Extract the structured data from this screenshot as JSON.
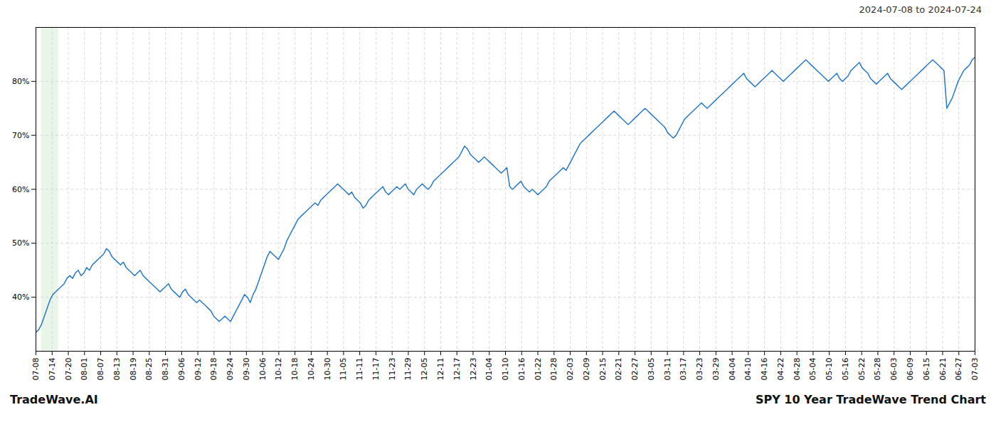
{
  "chart_data": {
    "type": "line",
    "title": "2024-07-08 to 2024-07-24",
    "footer_left": "TradeWave.AI",
    "footer_right": "SPY 10 Year TradeWave Trend Chart",
    "color": "#2878c8",
    "grid": true,
    "shaded_region": {
      "start": 2,
      "end": 8,
      "color": "#c8e6c9"
    },
    "xlim": [
      0,
      333
    ],
    "xticks": [
      {
        "value": 0,
        "label": "07-08"
      },
      {
        "value": 5.7414,
        "label": "07-14"
      },
      {
        "value": 11.4828,
        "label": "07-20"
      },
      {
        "value": 17.2241,
        "label": "08-01"
      },
      {
        "value": 22.9655,
        "label": "08-07"
      },
      {
        "value": 28.7069,
        "label": "08-13"
      },
      {
        "value": 34.4483,
        "label": "08-19"
      },
      {
        "value": 40.1897,
        "label": "08-25"
      },
      {
        "value": 45.931,
        "label": "08-31"
      },
      {
        "value": 51.6724,
        "label": "09-06"
      },
      {
        "value": 57.4138,
        "label": "09-12"
      },
      {
        "value": 63.1552,
        "label": "09-18"
      },
      {
        "value": 68.8966,
        "label": "09-24"
      },
      {
        "value": 74.6379,
        "label": "09-30"
      },
      {
        "value": 80.3793,
        "label": "10-06"
      },
      {
        "value": 86.1207,
        "label": "10-12"
      },
      {
        "value": 91.8621,
        "label": "10-18"
      },
      {
        "value": 97.6034,
        "label": "10-24"
      },
      {
        "value": 103.3448,
        "label": "10-30"
      },
      {
        "value": 109.0862,
        "label": "11-05"
      },
      {
        "value": 114.8276,
        "label": "11-11"
      },
      {
        "value": 120.569,
        "label": "11-17"
      },
      {
        "value": 126.3103,
        "label": "11-23"
      },
      {
        "value": 132.0517,
        "label": "11-29"
      },
      {
        "value": 137.7931,
        "label": "12-05"
      },
      {
        "value": 143.5345,
        "label": "12-11"
      },
      {
        "value": 149.2759,
        "label": "12-17"
      },
      {
        "value": 155.0172,
        "label": "12-23"
      },
      {
        "value": 160.7586,
        "label": "01-04"
      },
      {
        "value": 166.5,
        "label": "01-10"
      },
      {
        "value": 172.2414,
        "label": "01-16"
      },
      {
        "value": 177.9828,
        "label": "01-22"
      },
      {
        "value": 183.7241,
        "label": "01-28"
      },
      {
        "value": 189.4655,
        "label": "02-03"
      },
      {
        "value": 195.2069,
        "label": "02-09"
      },
      {
        "value": 200.9483,
        "label": "02-15"
      },
      {
        "value": 206.6897,
        "label": "02-21"
      },
      {
        "value": 212.431,
        "label": "02-27"
      },
      {
        "value": 218.1724,
        "label": "03-05"
      },
      {
        "value": 223.9138,
        "label": "03-11"
      },
      {
        "value": 229.6552,
        "label": "03-17"
      },
      {
        "value": 235.3966,
        "label": "03-23"
      },
      {
        "value": 241.1379,
        "label": "03-29"
      },
      {
        "value": 246.8793,
        "label": "04-04"
      },
      {
        "value": 252.6207,
        "label": "04-10"
      },
      {
        "value": 258.3621,
        "label": "04-16"
      },
      {
        "value": 264.1034,
        "label": "04-22"
      },
      {
        "value": 269.8448,
        "label": "04-28"
      },
      {
        "value": 275.5862,
        "label": "05-04"
      },
      {
        "value": 281.3276,
        "label": "05-10"
      },
      {
        "value": 287.069,
        "label": "05-16"
      },
      {
        "value": 292.8103,
        "label": "05-22"
      },
      {
        "value": 298.5517,
        "label": "05-28"
      },
      {
        "value": 304.2931,
        "label": "06-03"
      },
      {
        "value": 310.0345,
        "label": "06-09"
      },
      {
        "value": 315.7759,
        "label": "06-15"
      },
      {
        "value": 321.5172,
        "label": "06-21"
      },
      {
        "value": 327.2586,
        "label": "06-27"
      },
      {
        "value": 333,
        "label": "07-03"
      }
    ],
    "ylim": [
      30,
      90
    ],
    "yticks": [
      {
        "value": 40,
        "label": "40%"
      },
      {
        "value": 50,
        "label": "50%"
      },
      {
        "value": 60,
        "label": "60%"
      },
      {
        "value": 70,
        "label": "70%"
      },
      {
        "value": 80,
        "label": "80%"
      }
    ],
    "values": [
      33.5,
      34.0,
      35.0,
      36.5,
      38.0,
      39.5,
      40.5,
      41.0,
      41.5,
      42.0,
      42.5,
      43.5,
      44.0,
      43.5,
      44.5,
      45.0,
      44.0,
      44.5,
      45.5,
      45.0,
      46.0,
      46.5,
      47.0,
      47.5,
      48.0,
      49.0,
      48.5,
      47.5,
      47.0,
      46.5,
      46.0,
      46.5,
      45.5,
      45.0,
      44.5,
      44.0,
      44.5,
      45.0,
      44.0,
      43.5,
      43.0,
      42.5,
      42.0,
      41.5,
      41.0,
      41.5,
      42.0,
      42.5,
      41.5,
      41.0,
      40.5,
      40.0,
      41.0,
      41.5,
      40.5,
      40.0,
      39.5,
      39.0,
      39.5,
      39.0,
      38.5,
      38.0,
      37.5,
      36.5,
      36.0,
      35.5,
      36.0,
      36.5,
      36.0,
      35.5,
      36.5,
      37.5,
      38.5,
      39.5,
      40.5,
      40.0,
      39.0,
      40.5,
      41.5,
      43.0,
      44.5,
      46.0,
      47.5,
      48.5,
      48.0,
      47.5,
      47.0,
      48.0,
      49.0,
      50.5,
      51.5,
      52.5,
      53.5,
      54.5,
      55.0,
      55.5,
      56.0,
      56.5,
      57.0,
      57.5,
      57.0,
      58.0,
      58.5,
      59.0,
      59.5,
      60.0,
      60.5,
      61.0,
      60.5,
      60.0,
      59.5,
      59.0,
      59.5,
      58.5,
      58.0,
      57.5,
      56.5,
      57.0,
      58.0,
      58.5,
      59.0,
      59.5,
      60.0,
      60.5,
      59.5,
      59.0,
      59.5,
      60.0,
      60.5,
      60.0,
      60.5,
      61.0,
      60.0,
      59.5,
      59.0,
      60.0,
      60.5,
      61.0,
      60.5,
      60.0,
      60.5,
      61.5,
      62.0,
      62.5,
      63.0,
      63.5,
      64.0,
      64.5,
      65.0,
      65.5,
      66.0,
      67.0,
      68.0,
      67.5,
      66.5,
      66.0,
      65.5,
      65.0,
      65.5,
      66.0,
      65.5,
      65.0,
      64.5,
      64.0,
      63.5,
      63.0,
      63.5,
      64.0,
      60.5,
      60.0,
      60.5,
      61.0,
      61.5,
      60.5,
      60.0,
      59.5,
      60.0,
      59.5,
      59.0,
      59.5,
      60.0,
      60.5,
      61.5,
      62.0,
      62.5,
      63.0,
      63.5,
      64.0,
      63.5,
      64.5,
      65.5,
      66.5,
      67.5,
      68.5,
      69.0,
      69.5,
      70.0,
      70.5,
      71.0,
      71.5,
      72.0,
      72.5,
      73.0,
      73.5,
      74.0,
      74.5,
      74.0,
      73.5,
      73.0,
      72.5,
      72.0,
      72.5,
      73.0,
      73.5,
      74.0,
      74.5,
      75.0,
      74.5,
      74.0,
      73.5,
      73.0,
      72.5,
      72.0,
      71.5,
      70.5,
      70.0,
      69.5,
      70.0,
      71.0,
      72.0,
      73.0,
      73.5,
      74.0,
      74.5,
      75.0,
      75.5,
      76.0,
      75.5,
      75.0,
      75.5,
      76.0,
      76.5,
      77.0,
      77.5,
      78.0,
      78.5,
      79.0,
      79.5,
      80.0,
      80.5,
      81.0,
      81.5,
      80.5,
      80.0,
      79.5,
      79.0,
      79.5,
      80.0,
      80.5,
      81.0,
      81.5,
      82.0,
      81.5,
      81.0,
      80.5,
      80.0,
      80.5,
      81.0,
      81.5,
      82.0,
      82.5,
      83.0,
      83.5,
      84.0,
      83.5,
      83.0,
      82.5,
      82.0,
      81.5,
      81.0,
      80.5,
      80.0,
      80.5,
      81.0,
      81.5,
      80.5,
      80.0,
      80.5,
      81.0,
      82.0,
      82.5,
      83.0,
      83.5,
      82.5,
      82.0,
      81.5,
      80.5,
      80.0,
      79.5,
      80.0,
      80.5,
      81.0,
      81.5,
      80.5,
      80.0,
      79.5,
      79.0,
      78.5,
      79.0,
      79.5,
      80.0,
      80.5,
      81.0,
      81.5,
      82.0,
      82.5,
      83.0,
      83.5,
      84.0,
      83.5,
      83.0,
      82.5,
      82.0,
      75.0,
      76.0,
      77.0,
      78.5,
      80.0,
      81.0,
      82.0,
      82.5,
      83.0,
      84.0,
      84.5
    ]
  }
}
